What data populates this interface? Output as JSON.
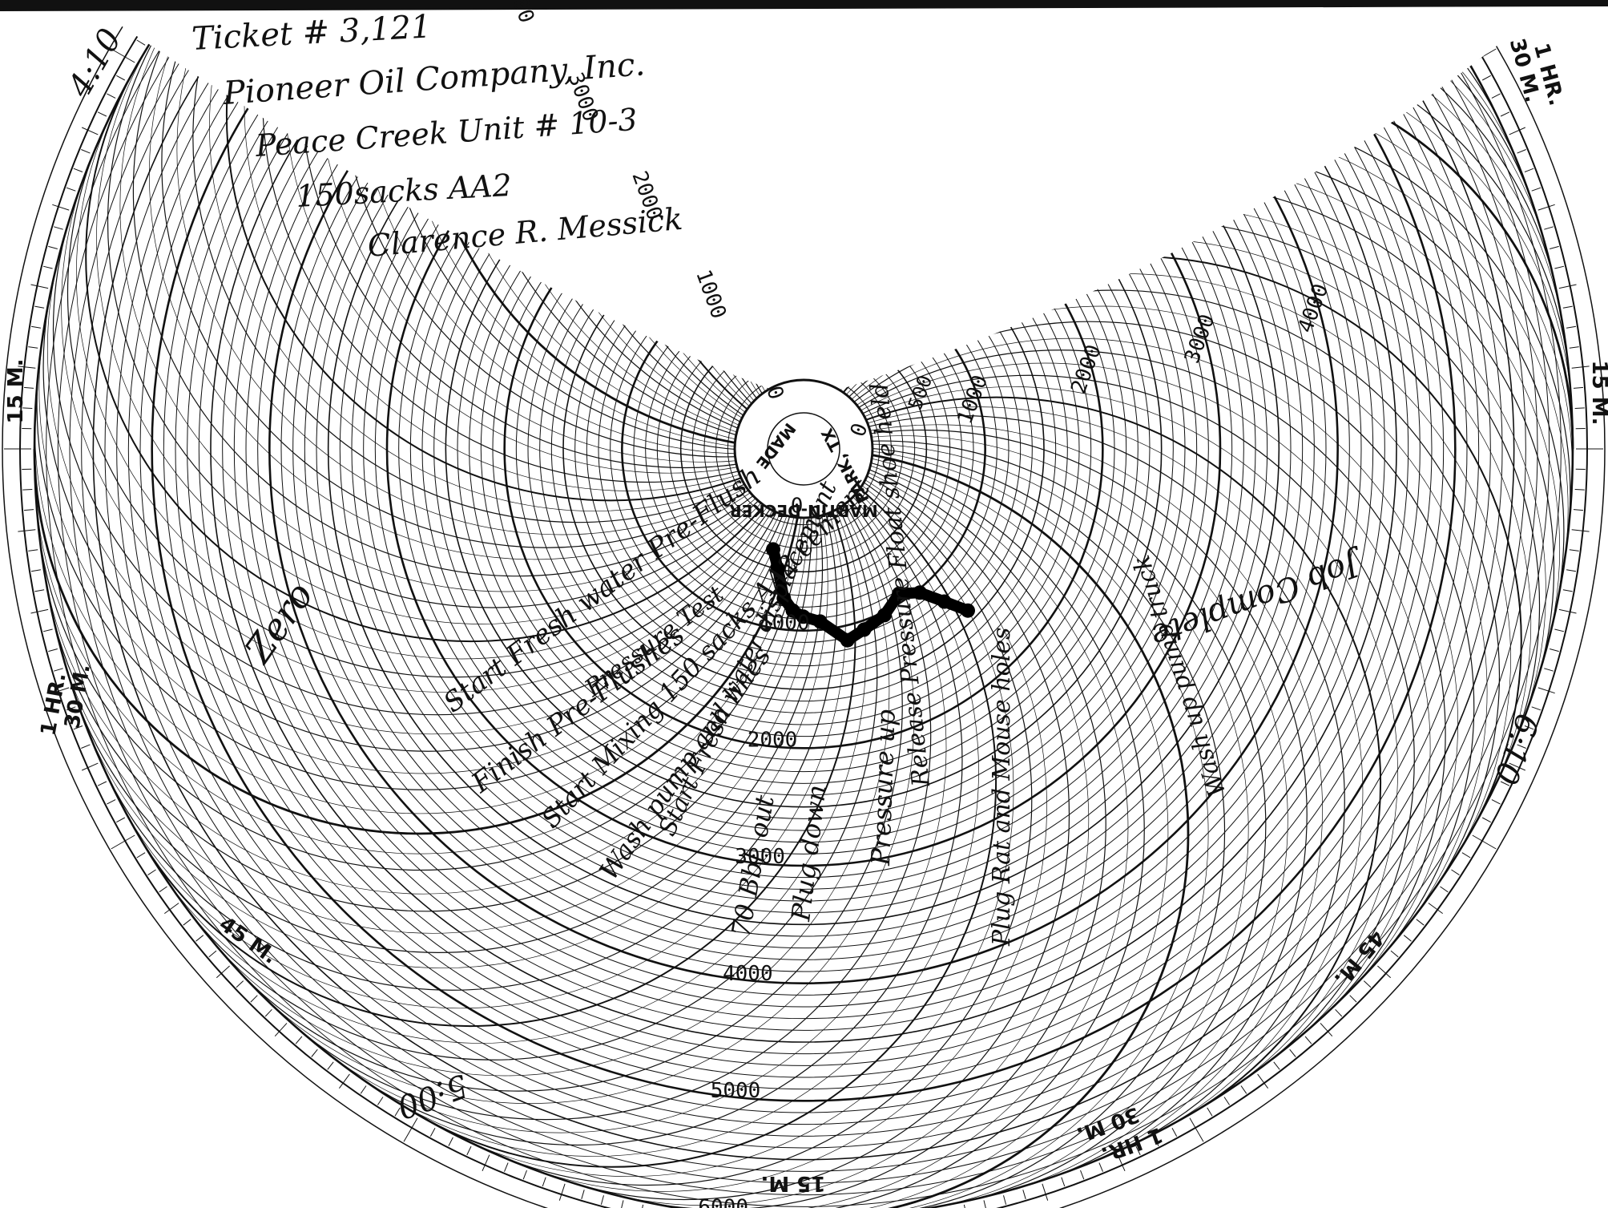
{
  "header_note": {
    "ticket": "Ticket # 3,121",
    "company": "Pioneer Oil Company, Inc.",
    "well": "Peace Creek Unit # 10-3",
    "cement": "150sacks AA2",
    "operator": "Clarence R. Messick"
  },
  "hub": {
    "maker": "MARTIN-DECKER",
    "place": "PARK, TX",
    "made": "MADE"
  },
  "chart_data": {
    "type": "polar-line",
    "pressure_ticks_left": [
      "0",
      "1000",
      "2000",
      "3000",
      "4000",
      "5000",
      "6000"
    ],
    "pressure_ticks_center": [
      "6000",
      "5000",
      "4000",
      "3000",
      "2000",
      "1000",
      "0"
    ],
    "pressure_ticks_right": [
      "4000",
      "3000",
      "2000",
      "1000",
      "0"
    ],
    "inner_right_partial": "500",
    "time_labels": {
      "upper_left_15": "15 M.",
      "left_30": "30 M.",
      "left_1hr": "1 HR.",
      "lower_left_45": "45 M.",
      "bottom_15": "15 M.",
      "lower_right_30": "30 M.",
      "lower_right_1hr": "1 HR.",
      "lower_right_45": "45 M.",
      "right_15": "15 M.",
      "upper_right_30": "30 M.",
      "upper_right_1hr": "1 HR."
    },
    "clock_marks": {
      "top_left": "4:10",
      "bottom_left": "5:00",
      "right": "6:10"
    },
    "annotations": [
      "Zero",
      "Start Fresh water Pre-Flush",
      "Pressure Test",
      "Finish Pre-Flushes",
      "Start Mixing 150 sacks AA2 cement",
      "Wash pump and lines",
      "Start Fresh water displacement",
      "70 Bbl. out",
      "Plug down",
      "Pressure up",
      "Release Pressure Float shoe held",
      "Plug Rat and Mouse holes",
      "Wash up pump truck",
      "Job Complete"
    ],
    "pressure_trace": [
      {
        "minutes": 12,
        "psi": 200
      },
      {
        "minutes": 17,
        "psi": 350
      },
      {
        "minutes": 22,
        "psi": 600
      },
      {
        "minutes": 26,
        "psi": 700
      },
      {
        "minutes": 30,
        "psi": 750
      },
      {
        "minutes": 36,
        "psi": 800
      },
      {
        "minutes": 44,
        "psi": 1000
      },
      {
        "minutes": 50,
        "psi": 950
      },
      {
        "minutes": 58,
        "psi": 900
      },
      {
        "minutes": 66,
        "psi": 800
      },
      {
        "minutes": 72,
        "psi": 900
      },
      {
        "minutes": 76,
        "psi": 1100
      },
      {
        "minutes": 79,
        "psi": 1300
      }
    ]
  }
}
